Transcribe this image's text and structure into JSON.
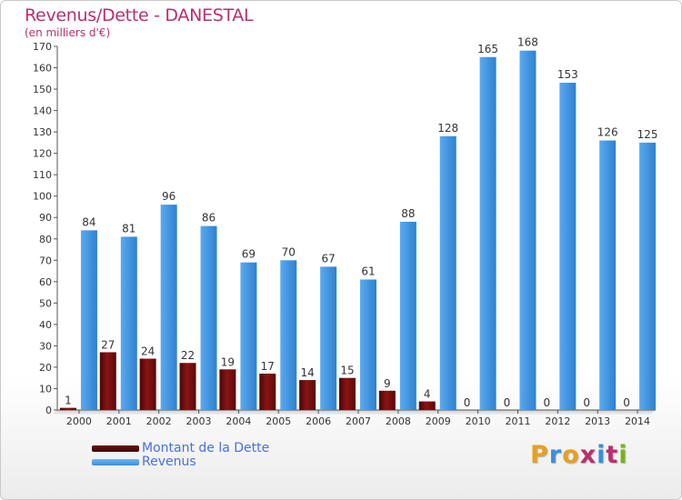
{
  "title": "Revenus/Dette - DANESTAL",
  "subtitle": "(en milliers d'€)",
  "colors": {
    "title": "#b8306f",
    "dette": "#7a0f0f",
    "revenus": "#3a8fd8",
    "legend_text": "#4a6fe0"
  },
  "legend": [
    {
      "label": "Montant de la Dette",
      "color": "#6b1010"
    },
    {
      "label": "Revenus",
      "color": "#3a8fd8"
    }
  ],
  "logo": {
    "letters": [
      "P",
      "r",
      "o",
      "x",
      "i",
      "t",
      "i"
    ],
    "colors": [
      "#e8a020",
      "#3a8fd8",
      "#e8a020",
      "#b8306f",
      "#3a8fd8",
      "#b8306f",
      "#7ab020"
    ]
  },
  "chart_data": {
    "type": "bar",
    "categories": [
      "2000",
      "2001",
      "2002",
      "2003",
      "2004",
      "2005",
      "2006",
      "2007",
      "2008",
      "2009",
      "2010",
      "2011",
      "2012",
      "2013",
      "2014"
    ],
    "series": [
      {
        "name": "Montant de la Dette",
        "values": [
          1,
          27,
          24,
          22,
          19,
          17,
          14,
          15,
          9,
          4,
          0,
          0,
          0,
          0,
          0
        ]
      },
      {
        "name": "Revenus",
        "values": [
          84,
          81,
          96,
          86,
          69,
          70,
          67,
          61,
          88,
          128,
          165,
          168,
          153,
          126,
          125
        ]
      }
    ],
    "ylim": [
      0,
      170
    ],
    "yticks": [
      0,
      10,
      20,
      30,
      40,
      50,
      60,
      70,
      80,
      90,
      100,
      110,
      120,
      130,
      140,
      150,
      160,
      170
    ],
    "grid": false,
    "legend_position": "bottom-left"
  }
}
